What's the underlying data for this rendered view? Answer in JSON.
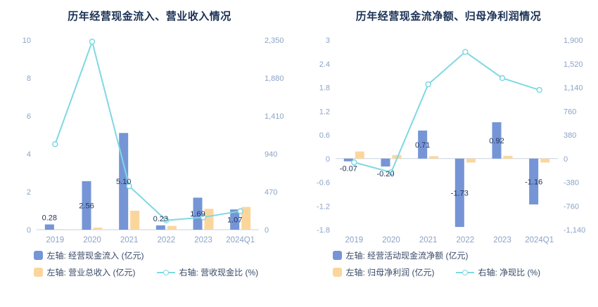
{
  "colors": {
    "background": "#ffffff",
    "bar_primary": "#7595d6",
    "bar_secondary": "#fbd69c",
    "line": "#7fd8e2",
    "title_text": "#1a3154",
    "axis_text": "#8ba3c7",
    "label_text": "#22365c",
    "legend_text": "#3a4a68",
    "zero_line": "#c9d2df"
  },
  "chart_data": [
    {
      "type": "bar",
      "title": "历年经营现金流入、营业收入情况",
      "categories": [
        "2019",
        "2020",
        "2021",
        "2022",
        "2023",
        "2024Q1"
      ],
      "left_axis": {
        "min": 0,
        "max": 10,
        "tick_labels": [
          "10",
          "8",
          "6",
          "4",
          "2",
          "0"
        ]
      },
      "right_axis": {
        "min": 0,
        "max": 2350,
        "tick_labels": [
          "2,350",
          "1,880",
          "1,410",
          "940",
          "470",
          "0"
        ]
      },
      "legend_position": "bottom",
      "grid": false,
      "series": [
        {
          "name": "左轴: 经营现金流入 (亿元)",
          "type": "bar",
          "axis": "left",
          "values": [
            0.28,
            2.56,
            5.1,
            0.23,
            1.69,
            1.07
          ],
          "labels": [
            "0.28",
            "2.56",
            "5.10",
            "0.23",
            "1.69",
            "1.07"
          ]
        },
        {
          "name": "左轴: 营业总收入 (亿元)",
          "type": "bar",
          "axis": "left",
          "values": [
            0.03,
            0.11,
            1.0,
            0.2,
            1.1,
            1.2
          ]
        },
        {
          "name": "右轴: 营收现金比 (%)",
          "type": "line",
          "axis": "right",
          "values": [
            1060,
            2330,
            540,
            115,
            155,
            230
          ]
        }
      ]
    },
    {
      "type": "bar",
      "title": "历年经营现金流净额、归母净利润情况",
      "categories": [
        "2019",
        "2020",
        "2021",
        "2022",
        "2023",
        "2024Q1"
      ],
      "left_axis": {
        "min": -1.8,
        "max": 3,
        "tick_labels": [
          "3",
          "2.4",
          "1.8",
          "1.2",
          "0.6",
          "0",
          "-0.6",
          "-1.2",
          "-1.8"
        ]
      },
      "right_axis": {
        "min": -1140,
        "max": 1900,
        "tick_labels": [
          "1,900",
          "1,520",
          "1,140",
          "760",
          "380",
          "0",
          "-380",
          "-760",
          "-1,140"
        ]
      },
      "legend_position": "bottom",
      "grid": false,
      "series": [
        {
          "name": "左轴: 经营活动现金流净额 (亿元)",
          "type": "bar",
          "axis": "left",
          "values": [
            -0.07,
            -0.2,
            0.71,
            -1.73,
            0.92,
            -1.16
          ],
          "labels": [
            "-0.07",
            "-0.20",
            "0.71",
            "-1.73",
            "0.92",
            "-1.16"
          ]
        },
        {
          "name": "左轴: 归母净利润 (亿元)",
          "type": "bar",
          "axis": "left",
          "values": [
            0.18,
            0.09,
            0.06,
            -0.1,
            0.07,
            -0.1
          ]
        },
        {
          "name": "右轴: 净现比 (%)",
          "type": "line",
          "axis": "right",
          "values": [
            -60,
            -220,
            1190,
            1710,
            1290,
            1100
          ]
        }
      ]
    }
  ]
}
